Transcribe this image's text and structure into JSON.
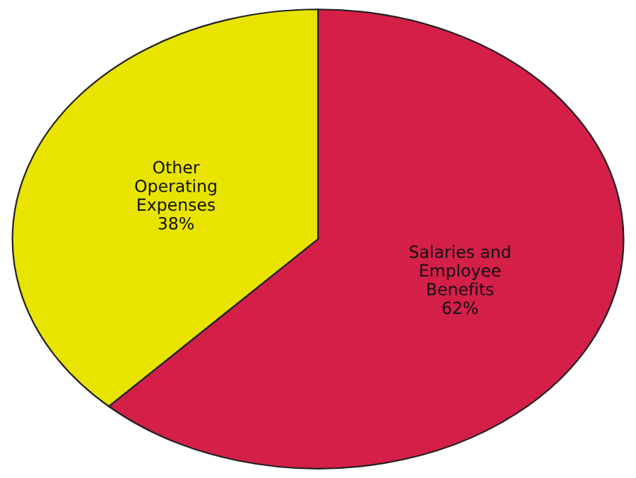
{
  "chart_data": {
    "type": "pie",
    "categories": [
      "Salaries and\nEmployee\nBenefits",
      "Other\nOperating\nExpenses"
    ],
    "values": [
      62,
      38
    ],
    "value_labels": [
      "62%",
      "38%"
    ],
    "colors": [
      "#d41f48",
      "#e8e400"
    ],
    "legend": false
  }
}
